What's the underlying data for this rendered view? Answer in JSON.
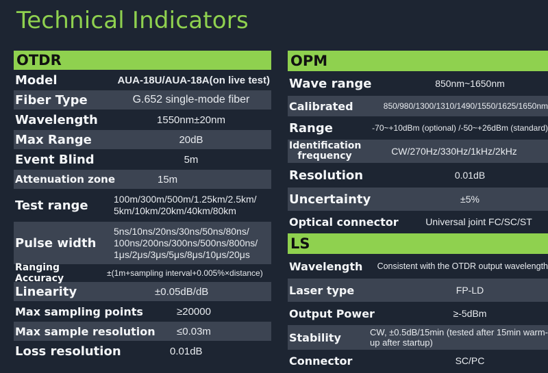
{
  "title": "Technical Indicators",
  "otdr": {
    "header": "OTDR",
    "rows": [
      {
        "label": "Model",
        "value": "AUA-18U/AUA-18A(on live test)"
      },
      {
        "label": "Fiber Type",
        "value": "G.652 single-mode fiber"
      },
      {
        "label": "Wavelength",
        "value": "1550nm±20nm"
      },
      {
        "label": "Max Range",
        "value": "20dB"
      },
      {
        "label": "Event Blind",
        "value": "5m"
      },
      {
        "label": "Attenuation zone",
        "value": "15m"
      },
      {
        "label": "Test range",
        "value": "100m/300m/500m/1.25km/2.5km/ 5km/10km/20km/40km/80km"
      },
      {
        "label": "Pulse width",
        "value": "5ns/10ns/20ns/30ns/50ns/80ns/ 100ns/200ns/300ns/500ns/800ns/ 1μs/2μs/3μs/5μs/8μs/10μs/20μs"
      },
      {
        "label": "Ranging Accuracy",
        "value": "±(1m+sampling interval+0.005%×distance)"
      },
      {
        "label": "Linearity",
        "value": "±0.05dB/dB"
      },
      {
        "label": "Max sampling points",
        "value": "≥20000"
      },
      {
        "label": "Max sample resolution",
        "value": "≤0.03m"
      },
      {
        "label": "Loss resolution",
        "value": "0.01dB"
      }
    ]
  },
  "opm": {
    "header": "OPM",
    "rows": [
      {
        "label": "Wave range",
        "value": "850nm~1650nm"
      },
      {
        "label": "Calibrated",
        "value": "850/980/1300/1310/1490/1550/1625/1650nm"
      },
      {
        "label": "Range",
        "value": "-70~+10dBm (optional) /-50~+26dBm (standard)"
      },
      {
        "label": "Identification frequency",
        "value": "CW/270Hz/330Hz/1kHz/2kHz"
      },
      {
        "label": "Resolution",
        "value": "0.01dB"
      },
      {
        "label": "Uncertainty",
        "value": "±5%"
      },
      {
        "label": "Optical connector",
        "value": "Universal joint FC/SC/ST"
      }
    ]
  },
  "ls": {
    "header": "LS",
    "rows": [
      {
        "label": "Wavelength",
        "value": "Consistent with the OTDR output wavelength"
      },
      {
        "label": "Laser type",
        "value": "FP-LD"
      },
      {
        "label": "Output Power",
        "value": "≥-5dBm"
      },
      {
        "label": "Stability",
        "value": "CW, ±0.5dB/15min (tested after 15min warm-up after startup)"
      },
      {
        "label": "Connector",
        "value": "SC/PC"
      }
    ]
  }
}
